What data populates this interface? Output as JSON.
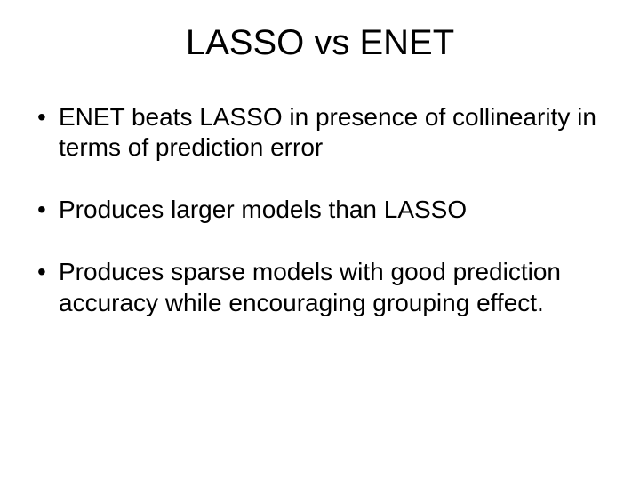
{
  "slide": {
    "title": "LASSO vs ENET",
    "bullets": [
      "ENET beats LASSO in presence of collinearity in terms of prediction error",
      "Produces larger models than LASSO",
      "Produces sparse models with good prediction accuracy while encouraging grouping effect."
    ],
    "styling": {
      "background_color": "#ffffff",
      "text_color": "#000000",
      "title_fontsize": 40,
      "title_fontweight": 400,
      "body_fontsize": 28,
      "font_family": "Arial",
      "bullet_glyph": "•",
      "slide_width": 720,
      "slide_height": 540
    }
  }
}
